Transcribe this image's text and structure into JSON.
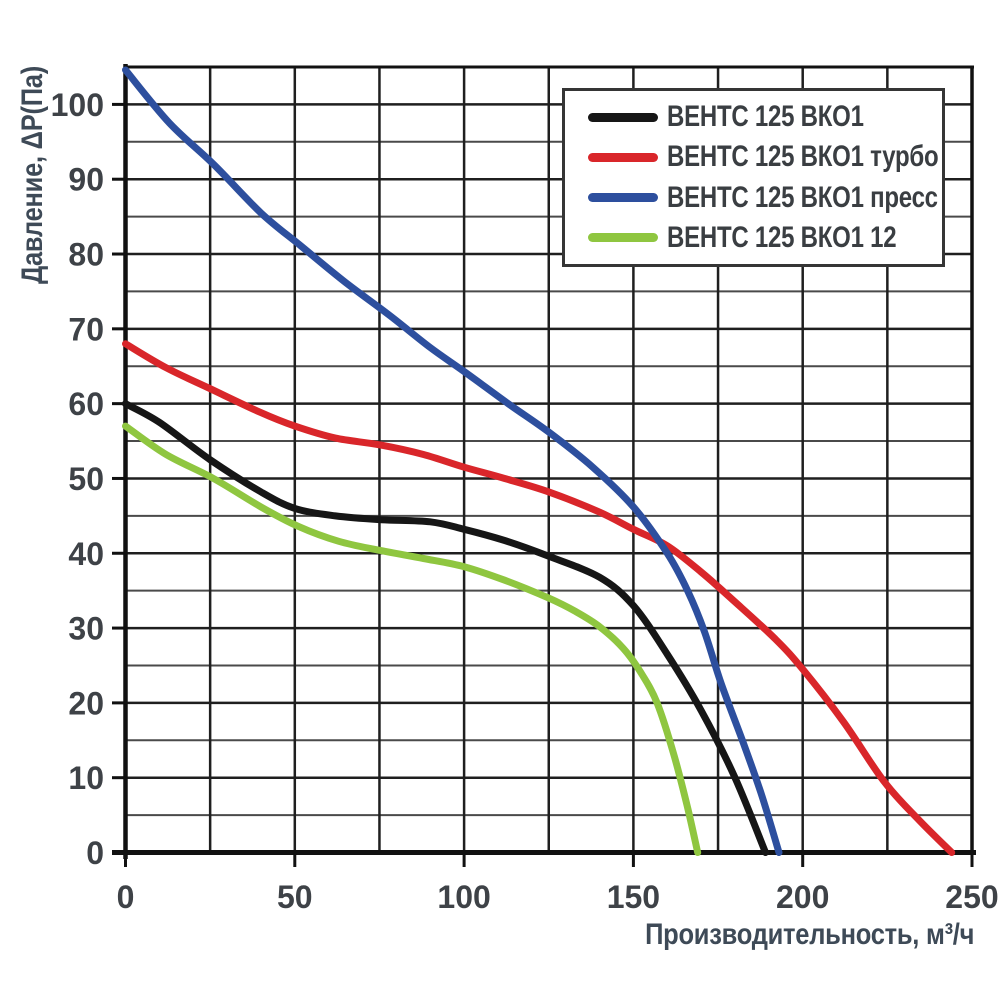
{
  "chart_data": {
    "type": "line",
    "title": "",
    "xlabel": "Производительность, м³/ч",
    "ylabel": "Давление, ΔP(Па)",
    "xlim": [
      0,
      250
    ],
    "ylim": [
      0,
      105
    ],
    "x_ticks": [
      0,
      50,
      100,
      150,
      200,
      250
    ],
    "y_ticks": [
      0,
      10,
      20,
      30,
      40,
      50,
      60,
      70,
      80,
      90,
      100
    ],
    "x_grid_step": 25,
    "y_grid_step": 5,
    "grid": true,
    "legend_position": "top-right",
    "colors": {
      "grid_major": "#1f1f1f",
      "grid_minor": "#4a4a4a",
      "spine": "#111111",
      "tick_text": "#3e4247"
    },
    "series": [
      {
        "name": "ВЕНТС 125 ВКО1",
        "color": "#161616",
        "points": [
          [
            0,
            60
          ],
          [
            10,
            57.5
          ],
          [
            25,
            52.5
          ],
          [
            40,
            48.2
          ],
          [
            50,
            46
          ],
          [
            62,
            45
          ],
          [
            75,
            44.5
          ],
          [
            90,
            44.2
          ],
          [
            100,
            43.2
          ],
          [
            112,
            41.7
          ],
          [
            125,
            39.6
          ],
          [
            140,
            36.8
          ],
          [
            150,
            33
          ],
          [
            160,
            26.5
          ],
          [
            170,
            19
          ],
          [
            180,
            10
          ],
          [
            189,
            0
          ]
        ]
      },
      {
        "name": "ВЕНТС 125 ВКО1 турбо",
        "color": "#d9262a",
        "points": [
          [
            0,
            68
          ],
          [
            12,
            64.8
          ],
          [
            25,
            62
          ],
          [
            40,
            58.8
          ],
          [
            50,
            57
          ],
          [
            62,
            55.4
          ],
          [
            75,
            54.5
          ],
          [
            88,
            53.2
          ],
          [
            100,
            51.5
          ],
          [
            112,
            50
          ],
          [
            125,
            48.2
          ],
          [
            140,
            45.5
          ],
          [
            150,
            43.2
          ],
          [
            160,
            41
          ],
          [
            170,
            37.5
          ],
          [
            180,
            33.5
          ],
          [
            192,
            28.5
          ],
          [
            200,
            24.5
          ],
          [
            212,
            17.5
          ],
          [
            224,
            9.5
          ],
          [
            234,
            4.5
          ],
          [
            244,
            0
          ]
        ]
      },
      {
        "name": "ВЕНТС 125 ВКО1 пресс",
        "color": "#2d4f9e",
        "points": [
          [
            0,
            104.6
          ],
          [
            13,
            97.5
          ],
          [
            26,
            92
          ],
          [
            40,
            85.5
          ],
          [
            52,
            81
          ],
          [
            65,
            76.2
          ],
          [
            78,
            71.8
          ],
          [
            90,
            67.5
          ],
          [
            100,
            64.3
          ],
          [
            113,
            60
          ],
          [
            125,
            56.2
          ],
          [
            138,
            51.5
          ],
          [
            150,
            46.2
          ],
          [
            160,
            40
          ],
          [
            166,
            35
          ],
          [
            171,
            29.5
          ],
          [
            176,
            22.5
          ],
          [
            183,
            14
          ],
          [
            188,
            7.5
          ],
          [
            193,
            0
          ]
        ]
      },
      {
        "name": "ВЕНТС 125 ВКО1 12",
        "color": "#8fc640",
        "points": [
          [
            0,
            57
          ],
          [
            12,
            53.2
          ],
          [
            26,
            50
          ],
          [
            40,
            46.2
          ],
          [
            51,
            43.6
          ],
          [
            63,
            41.6
          ],
          [
            75,
            40.4
          ],
          [
            88,
            39.3
          ],
          [
            100,
            38.2
          ],
          [
            112,
            36.4
          ],
          [
            125,
            34
          ],
          [
            133,
            32.2
          ],
          [
            140,
            30.2
          ],
          [
            147,
            27.3
          ],
          [
            152,
            24.2
          ],
          [
            157,
            20
          ],
          [
            162,
            13
          ],
          [
            166,
            6
          ],
          [
            169,
            0
          ]
        ]
      }
    ]
  }
}
